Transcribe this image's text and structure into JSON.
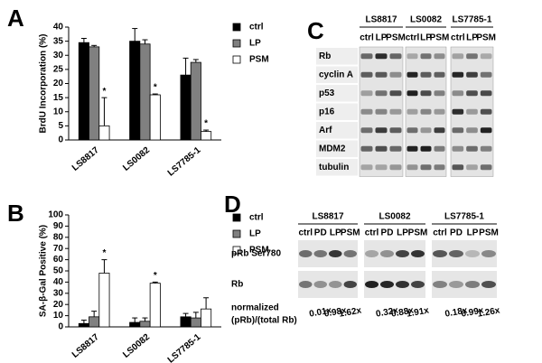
{
  "chart_data": [
    {
      "type": "bar",
      "panel": "A",
      "y_label": "BrdU Incorporation (%)",
      "categories": [
        "LS8817",
        "LS0082",
        "LS7785-1"
      ],
      "series": [
        {
          "name": "ctrl",
          "color": "#000000",
          "values": [
            34.5,
            35,
            23
          ],
          "errors": [
            1.5,
            4.5,
            6
          ]
        },
        {
          "name": "LP",
          "color": "#808080",
          "values": [
            33,
            34,
            27.5
          ],
          "errors": [
            0.5,
            1.5,
            1
          ]
        },
        {
          "name": "PSM",
          "color": "#ffffff",
          "values": [
            5,
            16,
            3
          ],
          "errors": [
            10,
            0.3,
            0.5
          ],
          "marks": [
            "*",
            "*",
            "*"
          ]
        }
      ],
      "ylim": [
        0,
        40
      ],
      "yticks": [
        0,
        5,
        10,
        15,
        20,
        25,
        30,
        35,
        40
      ]
    },
    {
      "type": "bar",
      "panel": "B",
      "y_label": "SA-β-Gal Positive (%)",
      "categories": [
        "LS8817",
        "LS0082",
        "LS7785-1"
      ],
      "series": [
        {
          "name": "ctrl",
          "color": "#000000",
          "values": [
            3,
            4,
            9
          ],
          "errors": [
            3,
            4,
            3
          ]
        },
        {
          "name": "LP",
          "color": "#808080",
          "values": [
            9,
            5,
            8
          ],
          "errors": [
            5,
            3,
            5
          ]
        },
        {
          "name": "PSM",
          "color": "#ffffff",
          "values": [
            48,
            39,
            16
          ],
          "errors": [
            12,
            1,
            10
          ],
          "marks": [
            "*",
            "*",
            null
          ]
        }
      ],
      "ylim": [
        0,
        100
      ],
      "yticks": [
        0,
        10,
        20,
        30,
        40,
        50,
        60,
        70,
        80,
        90,
        100
      ]
    }
  ],
  "blots": [
    {
      "panel": "C",
      "groups": [
        "LS8817",
        "LS0082",
        "LS7785-1"
      ],
      "lanes": [
        "ctrl",
        "LP",
        "PSM"
      ],
      "rows": [
        "Rb",
        "cyclin A",
        "p53",
        "p16",
        "Arf",
        "MDM2",
        "tubulin"
      ]
    },
    {
      "panel": "D",
      "groups": [
        "LS8817",
        "LS0082",
        "LS7785-1"
      ],
      "lanes": [
        "ctrl",
        "PD",
        "LP",
        "PSM"
      ],
      "rows": [
        "pRb Ser780",
        "Rb"
      ],
      "ratio_label": [
        "normalized",
        "(pRb)/(total Rb)"
      ],
      "ratios": [
        [
          "0.01x",
          "0.98x",
          "1.62x"
        ],
        [
          "0.32x",
          "0.88x",
          "1.91x"
        ],
        [
          "0.18x",
          "0.99x",
          "1.26x"
        ]
      ]
    }
  ]
}
